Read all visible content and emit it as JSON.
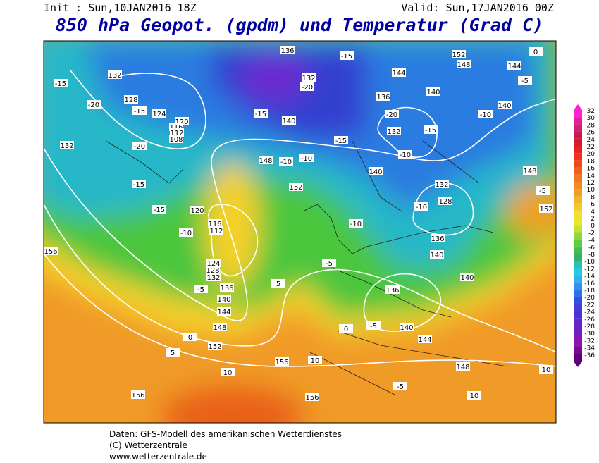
{
  "header": {
    "init": "Init : Sun,10JAN2016 18Z",
    "valid": "Valid: Sun,17JAN2016 00Z",
    "title": "850 hPa Geopot. (gpdm) und Temperatur (Grad C)"
  },
  "map": {
    "geopotential_labels": [
      "132",
      "128",
      "124",
      "120",
      "116",
      "112",
      "108",
      "132",
      "120",
      "116",
      "112",
      "124",
      "128",
      "132",
      "136",
      "140",
      "144",
      "148",
      "152",
      "156",
      "156",
      "156",
      "156",
      "152",
      "148",
      "140",
      "136",
      "132",
      "140",
      "144",
      "148",
      "152",
      "136",
      "140",
      "132",
      "136",
      "140",
      "132",
      "128",
      "140",
      "144",
      "148",
      "140",
      "136",
      "148",
      "152",
      "144",
      "140"
    ],
    "temperature_labels": [
      "-15",
      "-20",
      "-15",
      "-20",
      "-15",
      "-15",
      "-10",
      "-5",
      "0",
      "5",
      "10",
      "10",
      "10",
      "10",
      "-5",
      "5",
      "0",
      "-5",
      "-10",
      "-5",
      "-10",
      "-15",
      "-10",
      "-10",
      "-5",
      "0",
      "-15",
      "-20",
      "-15",
      "-10",
      "-10",
      "-15",
      "-20",
      "-5"
    ]
  },
  "colorbar": {
    "ticks": [
      32,
      30,
      28,
      26,
      24,
      22,
      20,
      18,
      16,
      14,
      12,
      10,
      8,
      6,
      4,
      2,
      0,
      -2,
      -4,
      -6,
      -8,
      -10,
      -12,
      -14,
      -16,
      -18,
      -20,
      -22,
      -24,
      -26,
      -28,
      -30,
      -32,
      -34,
      -36
    ]
  },
  "footer": {
    "line1": "Daten: GFS-Modell des amerikanischen Wetterdienstes",
    "line2": "(C) Wetterzentrale",
    "line3": "www.wetterzentrale.de"
  }
}
